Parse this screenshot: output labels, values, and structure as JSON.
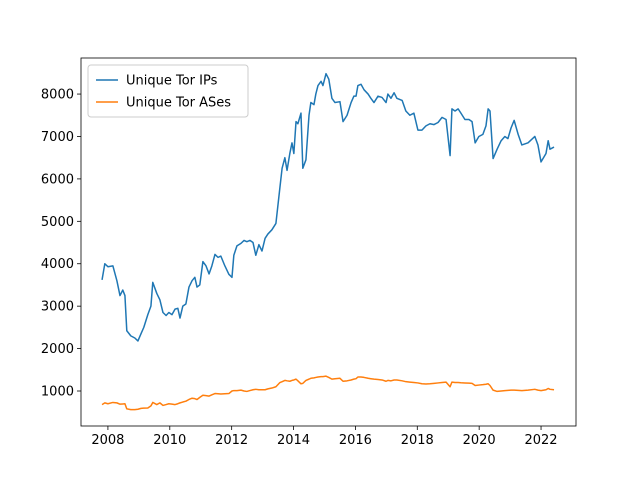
{
  "chart_data": {
    "type": "line",
    "x": [
      2007.81,
      2007.9,
      2008.0,
      2008.16,
      2008.29,
      2008.39,
      2008.48,
      2008.55,
      2008.61,
      2008.74,
      2008.87,
      2008.97,
      2009.07,
      2009.16,
      2009.29,
      2009.39,
      2009.45,
      2009.58,
      2009.68,
      2009.78,
      2009.88,
      2009.97,
      2010.07,
      2010.17,
      2010.26,
      2010.33,
      2010.42,
      2010.52,
      2010.62,
      2010.72,
      2010.81,
      2010.88,
      2010.97,
      2011.07,
      2011.17,
      2011.27,
      2011.36,
      2011.46,
      2011.56,
      2011.65,
      2011.78,
      2011.91,
      2012.01,
      2012.07,
      2012.17,
      2012.3,
      2012.4,
      2012.49,
      2012.59,
      2012.69,
      2012.78,
      2012.88,
      2012.98,
      2013.08,
      2013.17,
      2013.3,
      2013.43,
      2013.56,
      2013.63,
      2013.72,
      2013.79,
      2013.88,
      2013.95,
      2014.01,
      2014.08,
      2014.14,
      2014.24,
      2014.3,
      2014.4,
      2014.5,
      2014.56,
      2014.66,
      2014.72,
      2014.79,
      2014.89,
      2014.95,
      2015.05,
      2015.14,
      2015.24,
      2015.34,
      2015.5,
      2015.6,
      2015.73,
      2015.86,
      2015.95,
      2016.02,
      2016.08,
      2016.18,
      2016.28,
      2016.41,
      2016.5,
      2016.6,
      2016.73,
      2016.86,
      2016.99,
      2017.05,
      2017.15,
      2017.25,
      2017.34,
      2017.51,
      2017.63,
      2017.76,
      2017.89,
      2018.02,
      2018.15,
      2018.28,
      2018.41,
      2018.54,
      2018.67,
      2018.8,
      2018.93,
      2019.06,
      2019.12,
      2019.22,
      2019.32,
      2019.41,
      2019.54,
      2019.67,
      2019.77,
      2019.87,
      2019.99,
      2020.12,
      2020.22,
      2020.29,
      2020.35,
      2020.45,
      2020.58,
      2020.71,
      2020.83,
      2020.93,
      2021.03,
      2021.13,
      2021.26,
      2021.38,
      2021.58,
      2021.8,
      2021.9,
      2022.0,
      2022.16,
      2022.23,
      2022.29,
      2022.42
    ],
    "series": [
      {
        "name": "Unique Tor IPs",
        "color": "#1f77b4",
        "values": [
          3620,
          4000,
          3930,
          3950,
          3600,
          3250,
          3380,
          3250,
          2420,
          2300,
          2250,
          2180,
          2350,
          2500,
          2800,
          3000,
          3560,
          3300,
          3150,
          2850,
          2780,
          2850,
          2800,
          2930,
          2950,
          2720,
          3000,
          3050,
          3450,
          3600,
          3680,
          3450,
          3500,
          4050,
          3950,
          3760,
          3950,
          4220,
          4150,
          4180,
          3950,
          3750,
          3680,
          4200,
          4420,
          4480,
          4550,
          4520,
          4550,
          4500,
          4200,
          4450,
          4300,
          4600,
          4700,
          4800,
          4950,
          5800,
          6250,
          6500,
          6200,
          6600,
          6850,
          6600,
          7350,
          7300,
          7550,
          6250,
          6450,
          7500,
          7800,
          7750,
          8000,
          8200,
          8300,
          8200,
          8480,
          8350,
          7900,
          7800,
          7820,
          7350,
          7500,
          7800,
          7950,
          7950,
          8200,
          8230,
          8100,
          8000,
          7900,
          7800,
          7950,
          7920,
          7800,
          8000,
          7900,
          8030,
          7900,
          7850,
          7600,
          7500,
          7550,
          7150,
          7150,
          7250,
          7300,
          7280,
          7330,
          7450,
          7400,
          6550,
          7650,
          7600,
          7650,
          7550,
          7400,
          7400,
          7350,
          6850,
          7000,
          7050,
          7250,
          7650,
          7600,
          6480,
          6700,
          6900,
          7000,
          6950,
          7200,
          7380,
          7050,
          6800,
          6850,
          7000,
          6800,
          6400,
          6600,
          6900,
          6700,
          6750
        ]
      },
      {
        "name": "Unique Tor ASes",
        "color": "#ff7f0e",
        "values": [
          680,
          720,
          700,
          730,
          720,
          690,
          695,
          700,
          580,
          560,
          560,
          570,
          590,
          595,
          600,
          650,
          730,
          680,
          720,
          660,
          680,
          700,
          690,
          680,
          700,
          720,
          740,
          760,
          800,
          830,
          820,
          800,
          850,
          900,
          890,
          880,
          910,
          940,
          935,
          930,
          935,
          940,
          1000,
          1010,
          1010,
          1020,
          1000,
          990,
          1010,
          1030,
          1040,
          1030,
          1030,
          1030,
          1050,
          1070,
          1100,
          1200,
          1220,
          1250,
          1240,
          1230,
          1250,
          1260,
          1280,
          1240,
          1170,
          1180,
          1250,
          1280,
          1300,
          1310,
          1320,
          1330,
          1340,
          1340,
          1350,
          1320,
          1280,
          1290,
          1300,
          1230,
          1240,
          1260,
          1280,
          1290,
          1330,
          1330,
          1320,
          1300,
          1290,
          1280,
          1270,
          1260,
          1230,
          1250,
          1240,
          1260,
          1260,
          1240,
          1220,
          1210,
          1200,
          1190,
          1170,
          1165,
          1170,
          1180,
          1190,
          1200,
          1210,
          1100,
          1210,
          1200,
          1200,
          1195,
          1190,
          1185,
          1180,
          1130,
          1140,
          1150,
          1160,
          1170,
          1130,
          1020,
          990,
          1000,
          1010,
          1015,
          1020,
          1020,
          1015,
          1010,
          1020,
          1040,
          1020,
          1010,
          1030,
          1060,
          1040,
          1030
        ]
      }
    ],
    "xlim": [
      2007.13,
      2023.13
    ],
    "ylim": [
      175,
      8850
    ],
    "xticks": [
      2008,
      2010,
      2012,
      2014,
      2016,
      2018,
      2020,
      2022
    ],
    "yticks": [
      1000,
      2000,
      3000,
      4000,
      5000,
      6000,
      7000,
      8000
    ],
    "legend": "upper left"
  }
}
